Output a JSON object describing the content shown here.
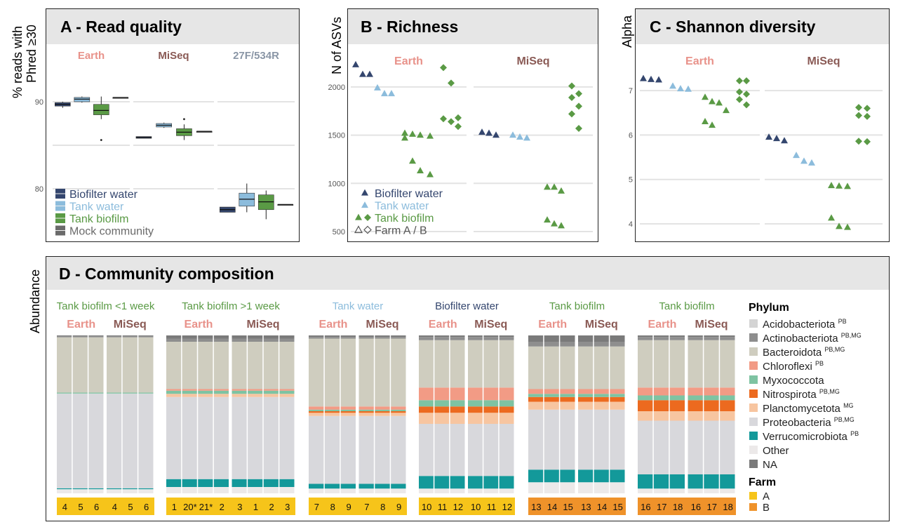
{
  "colors": {
    "biofilter_water": "#34466e",
    "tank_water": "#8cbcdc",
    "tank_biofilm": "#5a9a45",
    "mock_community": "#6a6a6a",
    "earth": "#e8928a",
    "miseq": "#8a5a55",
    "p27f": "#8a96a6",
    "farm_a": "#f6c41a",
    "farm_b": "#ef922a"
  },
  "panels": {
    "A": {
      "title": "A - Read quality",
      "ylabel_line1": "% reads with",
      "ylabel_line2": "Phred ≥30"
    },
    "B": {
      "title": "B - Richness",
      "ylabel": "N of ASVs"
    },
    "C": {
      "title": "C - Shannon diversity",
      "ylabel": "Alpha"
    },
    "D": {
      "title": "D - Community composition",
      "ylabel": "Abundance"
    }
  },
  "legend_A": [
    "Biofilter water",
    "Tank water",
    "Tank biofilm",
    "Mock community"
  ],
  "legend_B": [
    "Biofilter water",
    "Tank water",
    "Tank biofilm",
    "Farm A / B"
  ],
  "chart_data": [
    {
      "panel": "A",
      "type": "box",
      "title": "A - Read quality",
      "ylabel": "% reads with Phred ≥30",
      "yticks": [
        80,
        90
      ],
      "facets": [
        "Earth",
        "MiSeq",
        "27F/534R"
      ],
      "series": [
        {
          "name": "Biofilter water",
          "boxes": [
            {
              "facet": "Earth",
              "min": 89.3,
              "q1": 89.5,
              "median": 89.7,
              "q3": 89.9,
              "max": 90.0
            },
            {
              "facet": "MiSeq",
              "min": 85.8,
              "q1": 85.8,
              "median": 85.9,
              "q3": 86.0,
              "max": 86.0
            },
            {
              "facet": "27F/534R",
              "min": 77.3,
              "q1": 77.3,
              "median": 77.6,
              "q3": 77.9,
              "max": 77.9
            }
          ]
        },
        {
          "name": "Tank water",
          "boxes": [
            {
              "facet": "Earth",
              "min": 89.9,
              "q1": 90.0,
              "median": 90.3,
              "q3": 90.5,
              "max": 90.6
            },
            {
              "facet": "MiSeq",
              "min": 87.0,
              "q1": 87.1,
              "median": 87.3,
              "q3": 87.5,
              "max": 87.6
            },
            {
              "facet": "27F/534R",
              "min": 77.3,
              "q1": 78.0,
              "median": 78.8,
              "q3": 79.5,
              "max": 80.6
            }
          ]
        },
        {
          "name": "Tank biofilm",
          "boxes": [
            {
              "facet": "Earth",
              "min": 88.0,
              "q1": 88.5,
              "median": 89.0,
              "q3": 89.7,
              "max": 90.6,
              "outliers": [
                85.6
              ]
            },
            {
              "facet": "MiSeq",
              "min": 85.6,
              "q1": 86.1,
              "median": 86.5,
              "q3": 86.9,
              "max": 87.4,
              "outliers": [
                88.0
              ]
            },
            {
              "facet": "27F/534R",
              "min": 76.5,
              "q1": 77.6,
              "median": 78.5,
              "q3": 79.3,
              "max": 79.8
            }
          ]
        },
        {
          "name": "Mock community",
          "boxes": [
            {
              "facet": "Earth",
              "min": 90.5,
              "q1": 90.5,
              "median": 90.5,
              "q3": 90.5,
              "max": 90.5
            },
            {
              "facet": "MiSeq",
              "min": 86.6,
              "q1": 86.6,
              "median": 86.6,
              "q3": 86.6,
              "max": 86.6
            },
            {
              "facet": "27F/534R",
              "min": 78.2,
              "q1": 78.2,
              "median": 78.2,
              "q3": 78.2,
              "max": 78.2
            }
          ]
        }
      ],
      "legend": "bottom-left"
    },
    {
      "panel": "B",
      "type": "scatter",
      "title": "B - Richness",
      "ylabel": "N of ASVs",
      "yticks": [
        500,
        1000,
        1500,
        2000
      ],
      "facets": [
        "Earth",
        "MiSeq"
      ],
      "series": [
        {
          "name": "Biofilter water",
          "marker": "triangle",
          "points": [
            {
              "facet": "Earth",
              "x": 1,
              "y": 2230
            },
            {
              "facet": "Earth",
              "x": 1,
              "y": 2130
            },
            {
              "facet": "Earth",
              "x": 1,
              "y": 2130
            },
            {
              "facet": "MiSeq",
              "x": 1,
              "y": 1530
            },
            {
              "facet": "MiSeq",
              "x": 1,
              "y": 1520
            },
            {
              "facet": "MiSeq",
              "x": 1,
              "y": 1500
            }
          ]
        },
        {
          "name": "Tank water",
          "marker": "triangle",
          "points": [
            {
              "facet": "Earth",
              "x": 2,
              "y": 1990
            },
            {
              "facet": "Earth",
              "x": 2,
              "y": 1930
            },
            {
              "facet": "Earth",
              "x": 2,
              "y": 1930
            },
            {
              "facet": "MiSeq",
              "x": 2,
              "y": 1500
            },
            {
              "facet": "MiSeq",
              "x": 2,
              "y": 1480
            },
            {
              "facet": "MiSeq",
              "x": 2,
              "y": 1470
            }
          ]
        },
        {
          "name": "Tank biofilm",
          "marker": "triangle (farm A), diamond (farm B)",
          "points": [
            {
              "facet": "Earth",
              "x": 3,
              "y": 1520
            },
            {
              "facet": "Earth",
              "x": 3,
              "y": 1510
            },
            {
              "facet": "Earth",
              "x": 3,
              "y": 1500
            },
            {
              "facet": "Earth",
              "x": 3,
              "y": 1490
            },
            {
              "facet": "Earth",
              "x": 3,
              "y": 1470
            },
            {
              "facet": "Earth",
              "x": 3,
              "y": 1230
            },
            {
              "facet": "Earth",
              "x": 3,
              "y": 1130
            },
            {
              "facet": "Earth",
              "x": 3,
              "y": 1090
            },
            {
              "facet": "Earth",
              "x": 4,
              "y": 2200
            },
            {
              "facet": "Earth",
              "x": 4,
              "y": 2040
            },
            {
              "facet": "Earth",
              "x": 4,
              "y": 1680
            },
            {
              "facet": "Earth",
              "x": 4,
              "y": 1670
            },
            {
              "facet": "Earth",
              "x": 4,
              "y": 1640
            },
            {
              "facet": "Earth",
              "x": 4,
              "y": 1590
            },
            {
              "facet": "MiSeq",
              "x": 3,
              "y": 960
            },
            {
              "facet": "MiSeq",
              "x": 3,
              "y": 960
            },
            {
              "facet": "MiSeq",
              "x": 3,
              "y": 920
            },
            {
              "facet": "MiSeq",
              "x": 3,
              "y": 620
            },
            {
              "facet": "MiSeq",
              "x": 3,
              "y": 580
            },
            {
              "facet": "MiSeq",
              "x": 3,
              "y": 560
            },
            {
              "facet": "MiSeq",
              "x": 4,
              "y": 2010
            },
            {
              "facet": "MiSeq",
              "x": 4,
              "y": 1930
            },
            {
              "facet": "MiSeq",
              "x": 4,
              "y": 1890
            },
            {
              "facet": "MiSeq",
              "x": 4,
              "y": 1800
            },
            {
              "facet": "MiSeq",
              "x": 4,
              "y": 1720
            },
            {
              "facet": "MiSeq",
              "x": 4,
              "y": 1570
            }
          ]
        }
      ],
      "legend": "bottom-left"
    },
    {
      "panel": "C",
      "type": "scatter",
      "title": "C - Shannon diversity",
      "ylabel": "Alpha",
      "yticks": [
        4,
        5,
        6,
        7
      ],
      "facets": [
        "Earth",
        "MiSeq"
      ],
      "series": [
        {
          "name": "Biofilter water",
          "points": [
            {
              "facet": "Earth",
              "x": 1,
              "y": 7.27
            },
            {
              "facet": "Earth",
              "x": 1,
              "y": 7.25
            },
            {
              "facet": "Earth",
              "x": 1,
              "y": 7.24
            },
            {
              "facet": "MiSeq",
              "x": 1,
              "y": 5.95
            },
            {
              "facet": "MiSeq",
              "x": 1,
              "y": 5.92
            },
            {
              "facet": "MiSeq",
              "x": 1,
              "y": 5.87
            }
          ]
        },
        {
          "name": "Tank water",
          "points": [
            {
              "facet": "Earth",
              "x": 2,
              "y": 7.1
            },
            {
              "facet": "Earth",
              "x": 2,
              "y": 7.04
            },
            {
              "facet": "Earth",
              "x": 2,
              "y": 7.03
            },
            {
              "facet": "MiSeq",
              "x": 2,
              "y": 5.54
            },
            {
              "facet": "MiSeq",
              "x": 2,
              "y": 5.41
            },
            {
              "facet": "MiSeq",
              "x": 2,
              "y": 5.37
            }
          ]
        },
        {
          "name": "Tank biofilm",
          "points": [
            {
              "facet": "Earth",
              "x": 3,
              "y": 6.85
            },
            {
              "facet": "Earth",
              "x": 3,
              "y": 6.75
            },
            {
              "facet": "Earth",
              "x": 3,
              "y": 6.72
            },
            {
              "facet": "Earth",
              "x": 3,
              "y": 6.55
            },
            {
              "facet": "Earth",
              "x": 3,
              "y": 6.3
            },
            {
              "facet": "Earth",
              "x": 3,
              "y": 6.22
            },
            {
              "facet": "Earth",
              "x": 4,
              "y": 7.22
            },
            {
              "facet": "Earth",
              "x": 4,
              "y": 7.22
            },
            {
              "facet": "Earth",
              "x": 4,
              "y": 6.97
            },
            {
              "facet": "Earth",
              "x": 4,
              "y": 6.92
            },
            {
              "facet": "Earth",
              "x": 4,
              "y": 6.8
            },
            {
              "facet": "Earth",
              "x": 4,
              "y": 6.68
            },
            {
              "facet": "MiSeq",
              "x": 3,
              "y": 4.86
            },
            {
              "facet": "MiSeq",
              "x": 3,
              "y": 4.85
            },
            {
              "facet": "MiSeq",
              "x": 3,
              "y": 4.84
            },
            {
              "facet": "MiSeq",
              "x": 3,
              "y": 4.13
            },
            {
              "facet": "MiSeq",
              "x": 3,
              "y": 3.94
            },
            {
              "facet": "MiSeq",
              "x": 3,
              "y": 3.92
            },
            {
              "facet": "MiSeq",
              "x": 4,
              "y": 6.62
            },
            {
              "facet": "MiSeq",
              "x": 4,
              "y": 6.6
            },
            {
              "facet": "MiSeq",
              "x": 4,
              "y": 6.44
            },
            {
              "facet": "MiSeq",
              "x": 4,
              "y": 6.42
            },
            {
              "facet": "MiSeq",
              "x": 4,
              "y": 5.86
            },
            {
              "facet": "MiSeq",
              "x": 4,
              "y": 5.85
            }
          ]
        }
      ]
    },
    {
      "panel": "D",
      "type": "bar",
      "stacked": true,
      "title": "D - Community composition",
      "ylabel": "Abundance",
      "legend_title": "Phylum",
      "phyla": [
        {
          "name": "Acidobacteriota",
          "sup": "PB",
          "color": "#d4d4d4"
        },
        {
          "name": "Actinobacteriota",
          "sup": "PB,MG",
          "color": "#8e8e8e"
        },
        {
          "name": "Bacteroidota",
          "sup": "PB,MG",
          "color": "#cfcdbf"
        },
        {
          "name": "Chloroflexi",
          "sup": "PB",
          "color": "#f29b85"
        },
        {
          "name": "Myxococcota",
          "sup": "",
          "color": "#7ec3a2"
        },
        {
          "name": "Nitrospirota",
          "sup": "PB,MG",
          "color": "#ec6a1f"
        },
        {
          "name": "Planctomycetota",
          "sup": "MG",
          "color": "#f7c5a0"
        },
        {
          "name": "Proteobacteria",
          "sup": "PB,MG",
          "color": "#d8d8dc"
        },
        {
          "name": "Verrucomicrobiota",
          "sup": "PB",
          "color": "#13999a"
        },
        {
          "name": "Other",
          "sup": "",
          "color": "#ece9e9"
        },
        {
          "name": "NA",
          "sup": "",
          "color": "#7a7a7a"
        }
      ],
      "farm_legend_title": "Farm",
      "farm_legend": [
        "A",
        "B"
      ],
      "groups": [
        {
          "title": "Tank biofilm <1 week",
          "title_color": "#5a9a45",
          "farm": "A",
          "methods": [
            "Earth",
            "MiSeq"
          ],
          "labels": [
            [
              "4",
              "5",
              "6"
            ],
            [
              "4",
              "5",
              "6"
            ]
          ],
          "composition": {
            "NA": 0.006,
            "Actinobacteriota": 0.006,
            "Bacteroidota": 0.35,
            "Myxococcota": 0.006,
            "Proteobacteria": 0.6,
            "Verrucomicrobiota": 0.006,
            "Other": 0.026
          }
        },
        {
          "title": "Tank biofilm >1 week",
          "title_color": "#5a9a45",
          "farm": "A",
          "methods": [
            "Earth",
            "MiSeq"
          ],
          "labels": [
            [
              "1",
              "20*",
              "21*"
            ],
            [
              "2",
              "3",
              "1"
            ],
            [
              "2",
              "3"
            ]
          ],
          "labels_flat": [
            "1",
            "20*",
            "21*",
            "2",
            "3",
            "1",
            "2",
            "3"
          ],
          "composition": {
            "NA": 0.02,
            "Actinobacteriota": 0.02,
            "Bacteroidota": 0.3,
            "Chloroflexi": 0.01,
            "Myxococcota": 0.02,
            "Planctomycetota": 0.02,
            "Proteobacteria": 0.52,
            "Verrucomicrobiota": 0.05,
            "Other": 0.04
          }
        },
        {
          "title": "Tank water",
          "title_color": "#8cbcdc",
          "farm": "A",
          "methods": [
            "Earth",
            "MiSeq"
          ],
          "labels": [
            [
              "7",
              "8",
              "9"
            ],
            [
              "7",
              "8",
              "9"
            ]
          ],
          "composition": {
            "NA": 0.01,
            "Actinobacteriota": 0.01,
            "Bacteroidota": 0.43,
            "Chloroflexi": 0.02,
            "Myxococcota": 0.01,
            "Nitrospirota": 0.01,
            "Planctomycetota": 0.02,
            "Proteobacteria": 0.43,
            "Verrucomicrobiota": 0.03,
            "Other": 0.03
          }
        },
        {
          "title": "Biofilter water",
          "title_color": "#34466e",
          "farm": "A",
          "methods": [
            "Earth",
            "MiSeq"
          ],
          "labels": [
            [
              "10",
              "11",
              "12"
            ],
            [
              "10",
              "11",
              "12"
            ]
          ],
          "composition": {
            "NA": 0.01,
            "Actinobacteriota": 0.02,
            "Bacteroidota": 0.3,
            "Chloroflexi": 0.08,
            "Myxococcota": 0.04,
            "Nitrospirota": 0.04,
            "Planctomycetota": 0.07,
            "Proteobacteria": 0.33,
            "Verrucomicrobiota": 0.08,
            "Other": 0.03
          }
        },
        {
          "title": "Tank biofilm",
          "title_color": "#5a9a45",
          "farm": "B",
          "methods": [
            "Earth",
            "MiSeq"
          ],
          "labels": [
            [
              "13",
              "14",
              "15"
            ],
            [
              "13",
              "14",
              "15"
            ]
          ],
          "composition": {
            "NA": 0.04,
            "Actinobacteriota": 0.03,
            "Bacteroidota": 0.27,
            "Chloroflexi": 0.03,
            "Myxococcota": 0.02,
            "Nitrospirota": 0.03,
            "Planctomycetota": 0.05,
            "Proteobacteria": 0.38,
            "Verrucomicrobiota": 0.08,
            "Other": 0.07
          }
        },
        {
          "title": "Tank biofilm",
          "title_color": "#5a9a45",
          "farm": "B",
          "methods": [
            "Earth",
            "MiSeq"
          ],
          "labels": [
            [
              "16",
              "17",
              "18"
            ],
            [
              "16",
              "17",
              "18"
            ]
          ],
          "composition": {
            "NA": 0.01,
            "Actinobacteriota": 0.02,
            "Bacteroidota": 0.3,
            "Chloroflexi": 0.05,
            "Myxococcota": 0.03,
            "Nitrospirota": 0.07,
            "Planctomycetota": 0.06,
            "Proteobacteria": 0.34,
            "Verrucomicrobiota": 0.09,
            "Other": 0.03
          }
        }
      ]
    }
  ]
}
